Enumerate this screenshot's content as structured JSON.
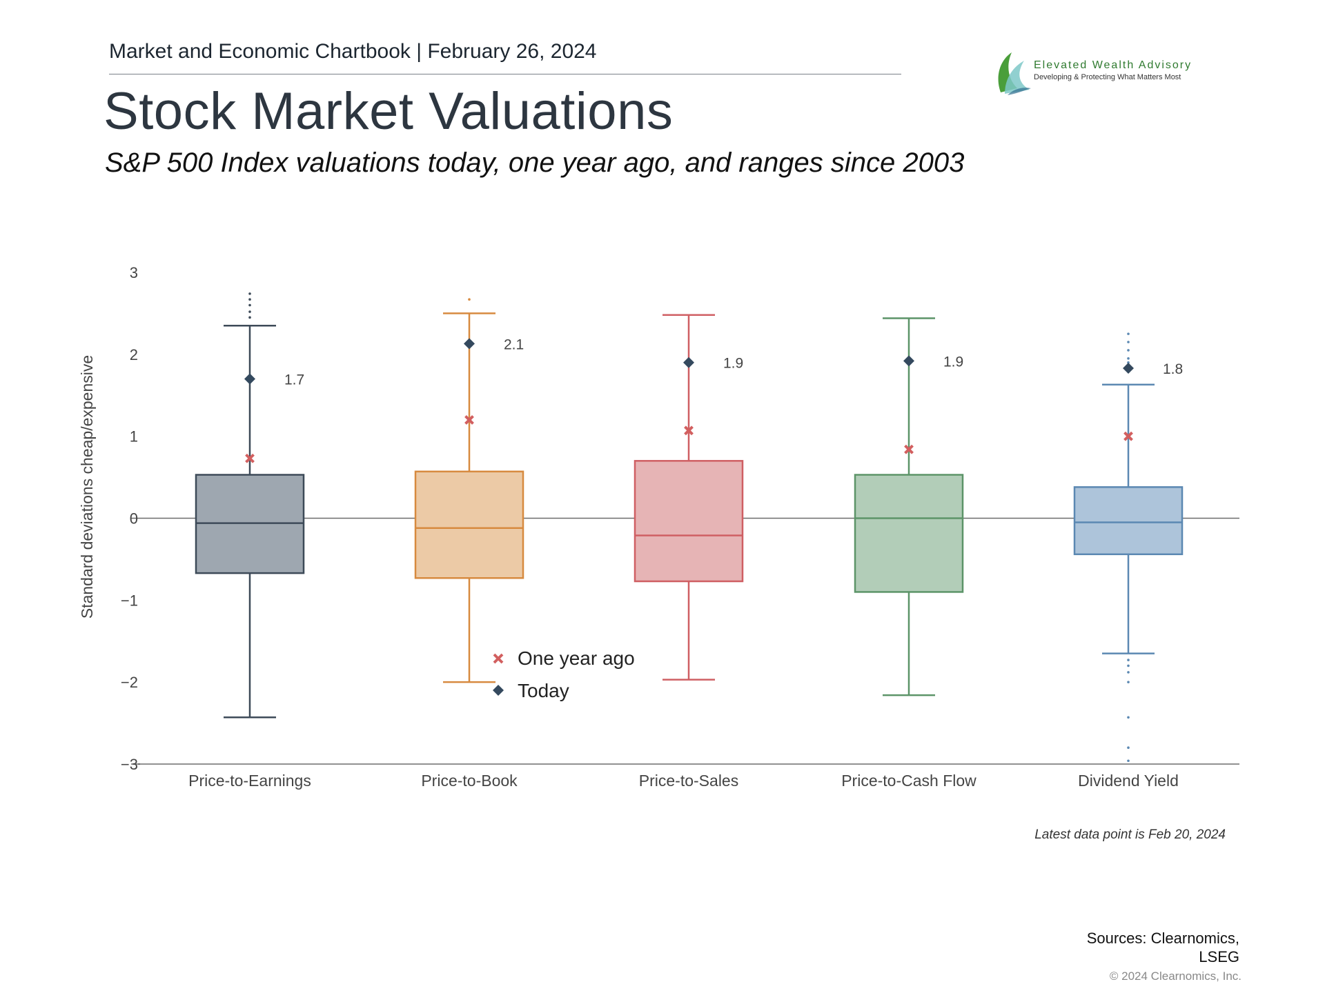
{
  "header": {
    "chartbook": "Market and Economic Chartbook | February 26, 2024",
    "title": "Stock Market Valuations",
    "subtitle": "S&P 500 Index valuations today, one year ago, and ranges since 2003"
  },
  "logo": {
    "name": "Elevated Wealth Advisory",
    "tagline": "Developing & Protecting What Matters Most"
  },
  "chart_data": {
    "type": "box",
    "ylabel": "Standard deviations cheap/expensive",
    "xlabel": "",
    "ylim": [
      -3,
      3
    ],
    "yticks": [
      "3",
      "2",
      "1",
      "0",
      "−1",
      "−2",
      "−3"
    ],
    "ytick_values": [
      3,
      2,
      1,
      0,
      -1,
      -2,
      -3
    ],
    "legend": {
      "placement": "center-left",
      "one_year_ago": "One year ago",
      "today": "Today"
    },
    "categories": [
      "Price-to-Earnings",
      "Price-to-Book",
      "Price-to-Sales",
      "Price-to-Cash Flow",
      "Dividend Yield"
    ],
    "series": [
      {
        "name": "Price-to-Earnings",
        "color": "#3d4a58",
        "fill": "#9ea7b0",
        "whisker_low": -2.43,
        "q1": -0.67,
        "median": -0.06,
        "q3": 0.53,
        "whisker_high": 2.35,
        "outliers": [
          2.45,
          2.52,
          2.6,
          2.67,
          2.74
        ],
        "today": 1.7,
        "today_label": "1.7",
        "one_year_ago": 0.73
      },
      {
        "name": "Price-to-Book",
        "color": "#d78a3f",
        "fill": "#eccaa6",
        "whisker_low": -2.0,
        "q1": -0.73,
        "median": -0.12,
        "q3": 0.57,
        "whisker_high": 2.5,
        "outliers": [
          2.67
        ],
        "today": 2.13,
        "today_label": "2.1",
        "one_year_ago": 1.2
      },
      {
        "name": "Price-to-Sales",
        "color": "#cf5f63",
        "fill": "#e6b4b5",
        "whisker_low": -1.97,
        "q1": -0.77,
        "median": -0.21,
        "q3": 0.7,
        "whisker_high": 2.48,
        "outliers": [],
        "today": 1.9,
        "today_label": "1.9",
        "one_year_ago": 1.07
      },
      {
        "name": "Price-to-Cash Flow",
        "color": "#5c9468",
        "fill": "#b2cdb8",
        "whisker_low": -2.16,
        "q1": -0.9,
        "median": 0.0,
        "q3": 0.53,
        "whisker_high": 2.44,
        "outliers": [],
        "today": 1.92,
        "today_label": "1.9",
        "one_year_ago": 0.84
      },
      {
        "name": "Dividend Yield",
        "color": "#5b88b2",
        "fill": "#adc4da",
        "whisker_low": -1.65,
        "q1": -0.44,
        "median": -0.05,
        "q3": 0.38,
        "whisker_high": 1.63,
        "outliers": [
          2.25,
          2.15,
          2.05,
          1.95,
          1.9,
          -1.73,
          -1.8,
          -1.88,
          -2.0,
          -2.43,
          -2.8,
          -2.96
        ],
        "today": 1.83,
        "today_label": "1.8",
        "one_year_ago": 1.0
      }
    ],
    "marker_colors": {
      "one_year_ago": "#d25f5f",
      "today": "#34495e"
    }
  },
  "notes": {
    "latest": "Latest data point is Feb 20, 2024",
    "sources": "Sources: Clearnomics, LSEG",
    "copyright": "© 2024 Clearnomics, Inc."
  }
}
